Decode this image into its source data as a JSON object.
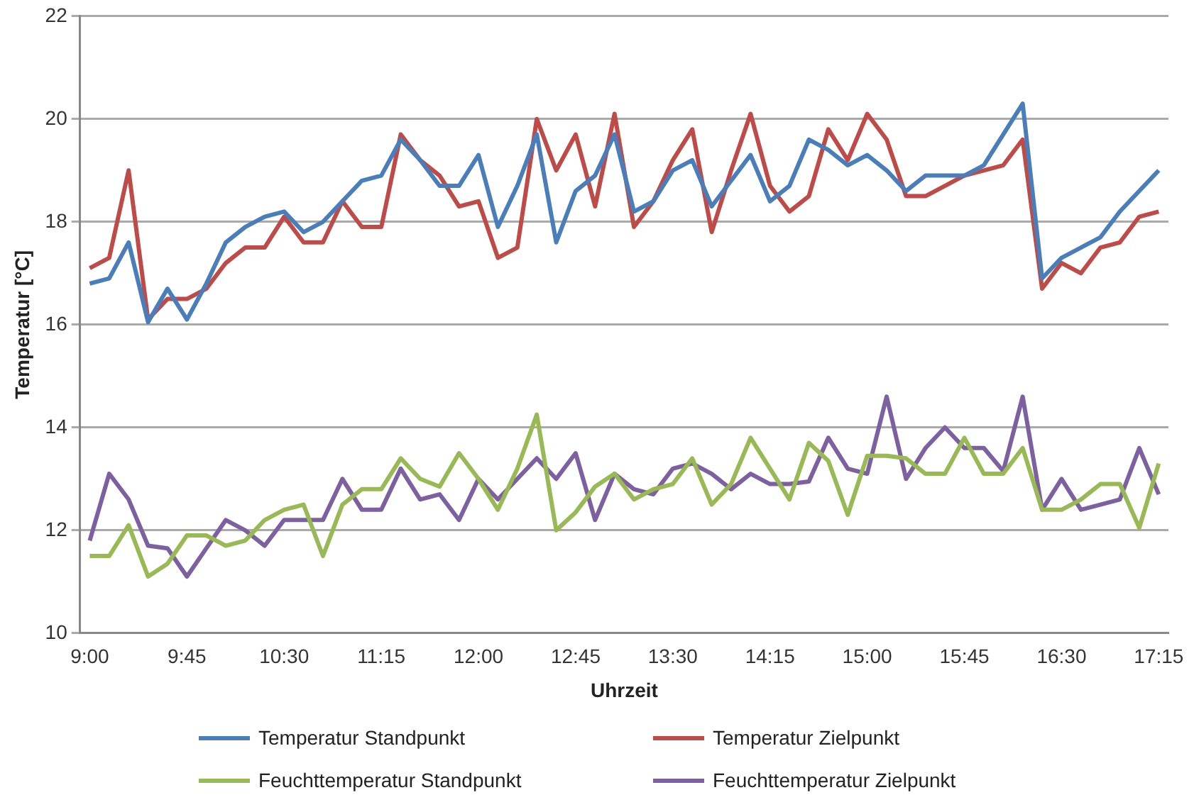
{
  "chart_data": {
    "type": "line",
    "xlabel": "Uhrzeit",
    "ylabel": "Temperatur [°C]",
    "categories": [
      "9:00",
      null,
      null,
      null,
      null,
      "9:45",
      null,
      null,
      null,
      null,
      "10:30",
      null,
      null,
      null,
      null,
      "11:15",
      null,
      null,
      null,
      null,
      "12:00",
      null,
      null,
      null,
      null,
      "12:45",
      null,
      null,
      null,
      null,
      "13:30",
      null,
      null,
      null,
      null,
      "14:15",
      null,
      null,
      null,
      null,
      "15:00",
      null,
      null,
      null,
      null,
      "15:45",
      null,
      null,
      null,
      null,
      "16:30",
      null,
      null,
      null,
      null,
      "17:15"
    ],
    "series": [
      {
        "name": "Temperatur Standpunkt",
        "color": "#4a7ebb",
        "values": [
          16.8,
          16.9,
          17.6,
          16.05,
          16.7,
          16.1,
          16.8,
          17.6,
          17.9,
          18.1,
          18.2,
          17.8,
          18.0,
          18.4,
          18.8,
          18.9,
          19.6,
          19.2,
          18.7,
          18.7,
          19.3,
          17.9,
          18.7,
          19.7,
          17.6,
          18.6,
          18.9,
          19.7,
          18.2,
          18.4,
          19.0,
          19.2,
          18.3,
          18.8,
          19.3,
          18.4,
          18.7,
          19.6,
          19.4,
          19.1,
          19.3,
          19.0,
          18.6,
          18.9,
          18.9,
          18.9,
          19.1,
          19.7,
          20.3,
          16.9,
          17.3,
          17.5,
          17.7,
          18.2,
          18.6,
          19.0
        ]
      },
      {
        "name": "Temperatur Zielpunkt",
        "color": "#be4b48",
        "values": [
          17.1,
          17.3,
          19.0,
          16.1,
          16.5,
          16.5,
          16.7,
          17.2,
          17.5,
          17.5,
          18.1,
          17.6,
          17.6,
          18.4,
          17.9,
          17.9,
          19.7,
          19.2,
          18.9,
          18.3,
          18.4,
          17.3,
          17.5,
          20.0,
          19.0,
          19.7,
          18.3,
          20.1,
          17.9,
          18.4,
          19.2,
          19.8,
          17.8,
          19.0,
          20.1,
          18.7,
          18.2,
          18.5,
          19.8,
          19.2,
          20.1,
          19.6,
          18.5,
          18.5,
          18.7,
          18.9,
          19.0,
          19.1,
          19.6,
          16.7,
          17.2,
          17.0,
          17.5,
          17.6,
          18.1,
          18.2
        ]
      },
      {
        "name": "Feuchttemperatur Standpunkt",
        "color": "#98b954",
        "values": [
          11.5,
          11.5,
          12.1,
          11.1,
          11.35,
          11.9,
          11.9,
          11.7,
          11.8,
          12.2,
          12.4,
          12.5,
          11.5,
          12.5,
          12.8,
          12.8,
          13.4,
          13.0,
          12.85,
          13.5,
          13.0,
          12.4,
          13.2,
          14.25,
          12.0,
          12.35,
          12.85,
          13.1,
          12.6,
          12.8,
          12.9,
          13.4,
          12.5,
          12.9,
          13.8,
          13.2,
          12.6,
          13.7,
          13.35,
          12.3,
          13.45,
          13.45,
          13.4,
          13.1,
          13.1,
          13.8,
          13.1,
          13.1,
          13.6,
          12.4,
          12.4,
          12.6,
          12.9,
          12.9,
          12.05,
          13.3
        ]
      },
      {
        "name": "Feuchttemperatur Zielpunkt",
        "color": "#7d60a0",
        "values": [
          11.8,
          13.1,
          12.6,
          11.7,
          11.65,
          11.1,
          11.65,
          12.2,
          12.0,
          11.7,
          12.2,
          12.2,
          12.2,
          13.0,
          12.4,
          12.4,
          13.2,
          12.6,
          12.7,
          12.2,
          13.0,
          12.6,
          13.0,
          13.4,
          13.0,
          13.5,
          12.2,
          13.1,
          12.8,
          12.7,
          13.2,
          13.3,
          13.1,
          12.8,
          13.1,
          12.9,
          12.9,
          12.95,
          13.8,
          13.2,
          13.1,
          14.6,
          13.0,
          13.6,
          14.0,
          13.6,
          13.6,
          13.15,
          14.6,
          12.4,
          13.0,
          12.4,
          12.5,
          12.6,
          13.6,
          12.7
        ]
      }
    ],
    "ylim": [
      10,
      22
    ],
    "yticks": [
      10,
      12,
      14,
      16,
      18,
      20,
      22
    ],
    "grid": "y",
    "legend": "bottom",
    "marker": "none",
    "line_style": "solid"
  }
}
